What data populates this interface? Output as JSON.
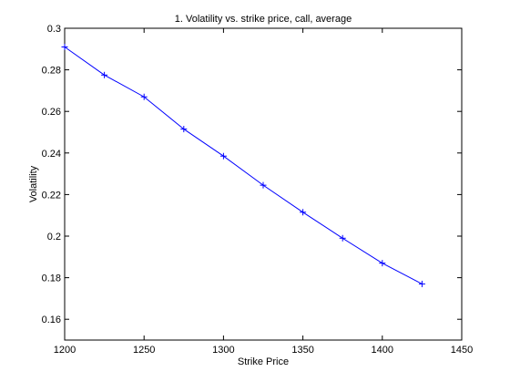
{
  "chart_data": {
    "type": "line",
    "title": "1. Volatility vs. strike price, call, average",
    "xlabel": "Strike Price",
    "ylabel": "Volatility",
    "xlim": [
      1200,
      1450
    ],
    "ylim": [
      0.15,
      0.3
    ],
    "xticks": [
      1200,
      1250,
      1300,
      1350,
      1400,
      1450
    ],
    "yticks": [
      0.16,
      0.18,
      0.2,
      0.22,
      0.24,
      0.26,
      0.28,
      0.3
    ],
    "xtick_labels": [
      "1200",
      "1250",
      "1300",
      "1350",
      "1400",
      "1450"
    ],
    "ytick_labels": [
      "0.16",
      "0.18",
      "0.2",
      "0.22",
      "0.24",
      "0.26",
      "0.28",
      "0.3"
    ],
    "grid": false,
    "marker": "+",
    "color": "#0000ff",
    "series": [
      {
        "x": [
          1200,
          1225,
          1250,
          1275,
          1300,
          1325,
          1350,
          1375,
          1400,
          1425
        ],
        "y": [
          0.291,
          0.2775,
          0.267,
          0.2515,
          0.2385,
          0.2245,
          0.2115,
          0.199,
          0.187,
          0.177
        ]
      }
    ]
  }
}
